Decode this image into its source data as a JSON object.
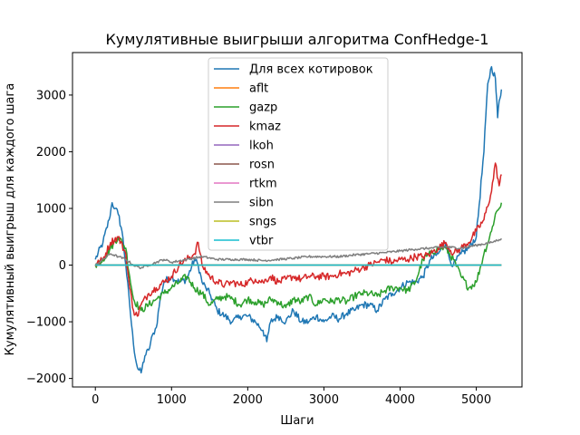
{
  "chart_data": {
    "type": "line",
    "title": "Кумулятивные выигрыши алгоритма ConfHedge-1",
    "xlabel": "Шаги",
    "ylabel": "Кумулятивный выигрыш для каждого шага",
    "xlim": [
      -300,
      5600
    ],
    "ylim": [
      -2150,
      3750
    ],
    "xticks": [
      0,
      1000,
      2000,
      3000,
      4000,
      5000
    ],
    "yticks": [
      -2000,
      -1000,
      0,
      1000,
      2000,
      3000
    ],
    "grid": false,
    "legend_position": "top-center",
    "series": [
      {
        "name": "Для всех котировок",
        "color": "#1f77b4",
        "x": [
          0,
          100,
          180,
          220,
          260,
          300,
          350,
          400,
          450,
          500,
          550,
          600,
          650,
          700,
          760,
          800,
          850,
          900,
          1000,
          1100,
          1200,
          1300,
          1350,
          1400,
          1450,
          1500,
          1600,
          1700,
          1800,
          1900,
          2000,
          2100,
          2200,
          2250,
          2300,
          2400,
          2500,
          2600,
          2700,
          2800,
          2900,
          3000,
          3100,
          3200,
          3300,
          3400,
          3500,
          3600,
          3700,
          3800,
          3900,
          4000,
          4100,
          4200,
          4300,
          4400,
          4500,
          4600,
          4650,
          4700,
          4800,
          4900,
          5000,
          5100,
          5150,
          5200,
          5250,
          5280,
          5300,
          5330
        ],
        "y": [
          100,
          400,
          800,
          1100,
          1000,
          900,
          600,
          0,
          -700,
          -1400,
          -1800,
          -1900,
          -1600,
          -1500,
          -1200,
          -1100,
          -600,
          -300,
          -200,
          -300,
          -250,
          100,
          0,
          -300,
          -400,
          -500,
          -800,
          -900,
          -1000,
          -900,
          -900,
          -1000,
          -1150,
          -1350,
          -1000,
          -900,
          -1000,
          -800,
          -1000,
          -1000,
          -900,
          -1000,
          -900,
          -950,
          -850,
          -800,
          -700,
          -700,
          -800,
          -600,
          -500,
          -400,
          -300,
          -300,
          -200,
          100,
          200,
          400,
          100,
          0,
          200,
          300,
          500,
          2000,
          3200,
          3500,
          3300,
          2600,
          2900,
          3100
        ]
      },
      {
        "name": "aflt",
        "color": "#ff7f0e",
        "x": [
          0,
          5330
        ],
        "y": [
          0,
          0
        ]
      },
      {
        "name": "gazp",
        "color": "#2ca02c",
        "x": [
          0,
          100,
          200,
          300,
          400,
          450,
          500,
          600,
          700,
          800,
          900,
          1000,
          1100,
          1200,
          1300,
          1400,
          1500,
          1600,
          1700,
          1800,
          1900,
          2000,
          2100,
          2200,
          2300,
          2400,
          2500,
          2600,
          2700,
          2800,
          2900,
          3000,
          3100,
          3200,
          3300,
          3400,
          3500,
          3600,
          3700,
          3800,
          3900,
          4000,
          4100,
          4200,
          4300,
          4400,
          4500,
          4600,
          4700,
          4800,
          4900,
          5000,
          5100,
          5200,
          5250,
          5300,
          5330
        ],
        "y": [
          0,
          100,
          300,
          500,
          300,
          -200,
          -600,
          -800,
          -700,
          -600,
          -500,
          -400,
          -300,
          -200,
          -400,
          -500,
          -700,
          -600,
          -550,
          -600,
          -700,
          -600,
          -650,
          -700,
          -600,
          -650,
          -750,
          -600,
          -650,
          -550,
          -700,
          -600,
          -650,
          -600,
          -650,
          -550,
          -500,
          -500,
          -550,
          -450,
          -400,
          -400,
          -450,
          -300,
          100,
          200,
          300,
          300,
          100,
          -200,
          -400,
          -300,
          200,
          600,
          900,
          1000,
          1100
        ]
      },
      {
        "name": "kmaz",
        "color": "#d62728",
        "x": [
          0,
          100,
          200,
          300,
          400,
          450,
          500,
          550,
          600,
          700,
          800,
          900,
          1000,
          1100,
          1200,
          1300,
          1350,
          1400,
          1500,
          1600,
          1700,
          1800,
          1900,
          2000,
          2100,
          2200,
          2300,
          2400,
          2500,
          2600,
          2700,
          2800,
          2900,
          3000,
          3100,
          3200,
          3300,
          3400,
          3500,
          3600,
          3700,
          3800,
          3900,
          4000,
          4100,
          4200,
          4300,
          4400,
          4500,
          4600,
          4700,
          4800,
          4900,
          5000,
          5100,
          5200,
          5250,
          5300,
          5330
        ],
        "y": [
          0,
          100,
          400,
          500,
          200,
          -400,
          -800,
          -900,
          -700,
          -500,
          -400,
          -300,
          -200,
          0,
          100,
          200,
          400,
          0,
          -200,
          -300,
          -350,
          -300,
          -350,
          -300,
          -250,
          -300,
          -200,
          -300,
          -250,
          -200,
          -250,
          -200,
          -200,
          -200,
          -200,
          -150,
          -150,
          -100,
          -50,
          0,
          50,
          100,
          50,
          100,
          100,
          150,
          150,
          200,
          300,
          400,
          200,
          300,
          400,
          600,
          800,
          1300,
          1800,
          1400,
          1600
        ]
      },
      {
        "name": "lkoh",
        "color": "#9467bd",
        "x": [
          0,
          5330
        ],
        "y": [
          0,
          0
        ]
      },
      {
        "name": "rosn",
        "color": "#8c564b",
        "x": [
          0,
          5330
        ],
        "y": [
          0,
          0
        ]
      },
      {
        "name": "rtkm",
        "color": "#e377c2",
        "x": [
          0,
          5330
        ],
        "y": [
          0,
          0
        ]
      },
      {
        "name": "sibn",
        "color": "#7f7f7f",
        "x": [
          0,
          200,
          300,
          400,
          500,
          600,
          700,
          800,
          900,
          1000,
          1200,
          1400,
          1600,
          1800,
          2000,
          2200,
          2400,
          2600,
          2800,
          3000,
          3200,
          3400,
          3600,
          3800,
          4000,
          4200,
          4400,
          4600,
          4800,
          5000,
          5200,
          5300,
          5330
        ],
        "y": [
          0,
          200,
          150,
          100,
          0,
          -50,
          0,
          50,
          100,
          50,
          100,
          150,
          100,
          100,
          100,
          80,
          100,
          120,
          150,
          150,
          150,
          180,
          200,
          220,
          250,
          280,
          300,
          320,
          300,
          350,
          400,
          450,
          470
        ]
      },
      {
        "name": "sngs",
        "color": "#bcbd22",
        "x": [
          0,
          5330
        ],
        "y": [
          0,
          0
        ]
      },
      {
        "name": "vtbr",
        "color": "#17becf",
        "x": [
          0,
          5330
        ],
        "y": [
          0,
          0
        ]
      }
    ]
  }
}
